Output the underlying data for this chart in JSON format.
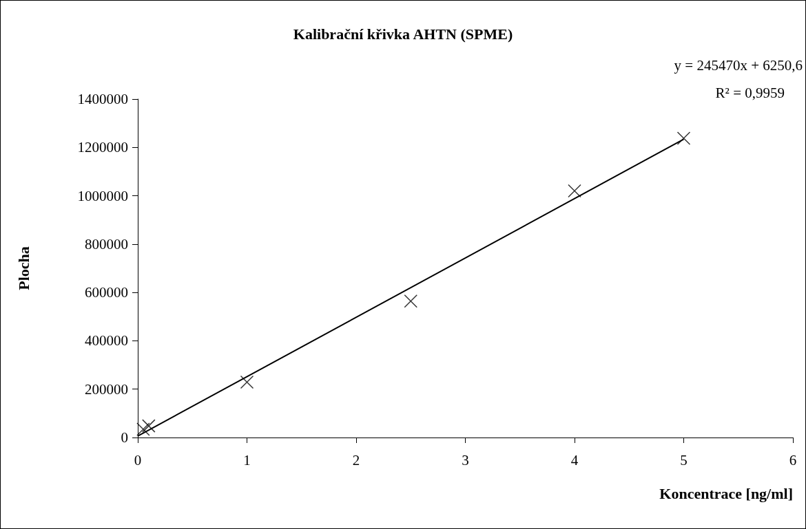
{
  "chart_data": {
    "type": "scatter",
    "title": "Kalibrační křivka AHTN (SPME)",
    "xlabel": "Koncentrace [ng/ml]",
    "ylabel": "Plocha",
    "annotations": [
      "y = 245470x + 6250,6",
      "R² = 0,9959"
    ],
    "xlim": [
      0,
      6
    ],
    "xticks": [
      0,
      1,
      2,
      3,
      4,
      5,
      6
    ],
    "ylim": [
      0,
      1400000
    ],
    "yticks": [
      0,
      200000,
      400000,
      600000,
      800000,
      1000000,
      1200000,
      1400000
    ],
    "grid": false,
    "marker": "cross",
    "series": [
      {
        "color": "#000000",
        "x": [
          0.05,
          0.1,
          1,
          2.5,
          4,
          5
        ],
        "values": [
          34000,
          48000,
          229000,
          564000,
          1020000,
          1238000
        ]
      },
      {
        "type": "line",
        "color": "#000000",
        "marker": "none",
        "line_style": "solid",
        "x": [
          0,
          5
        ],
        "values": [
          6000,
          1234000
        ]
      }
    ]
  }
}
